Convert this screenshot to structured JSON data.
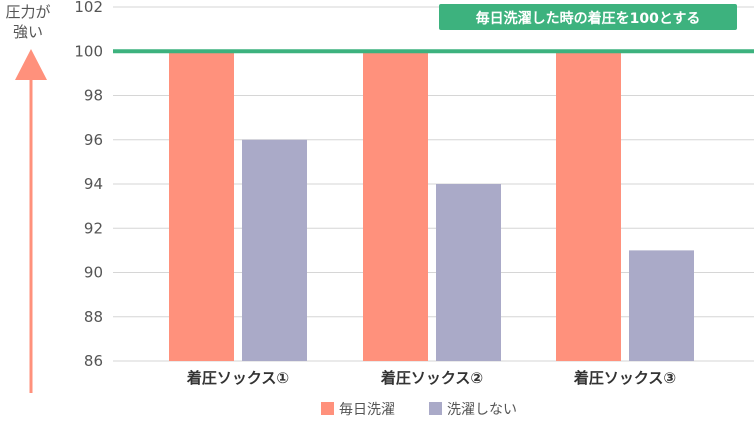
{
  "chart_data": {
    "type": "bar",
    "ylabel": [
      "圧力が",
      "強い"
    ],
    "categories": [
      "着圧ソックス①",
      "着圧ソックス②",
      "着圧ソックス③"
    ],
    "series": [
      {
        "name": "毎日洗濯",
        "color": "#FF917C",
        "values": [
          100,
          100,
          100
        ]
      },
      {
        "name": "洗濯しない",
        "color": "#AAAAC8",
        "values": [
          96,
          94,
          91
        ]
      }
    ],
    "ylim": [
      86,
      102
    ],
    "yticks": [
      86,
      88,
      90,
      92,
      94,
      96,
      98,
      100,
      102
    ],
    "grid": true,
    "reference_line": {
      "value": 100,
      "color": "#3DB27E"
    },
    "annotation": "毎日洗濯した時の着圧を100とする",
    "legend": "bottom",
    "arrow_color": "#FF917C"
  }
}
